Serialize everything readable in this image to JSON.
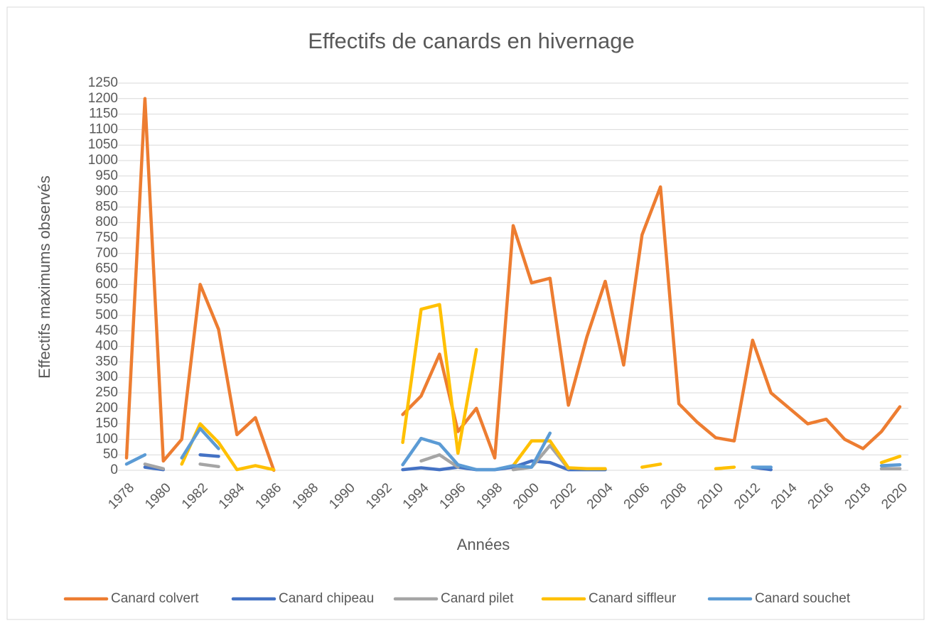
{
  "chart_data": {
    "type": "line",
    "title": "Effectifs de canards en hivernage",
    "x_label": "Années",
    "y_label": "Effectifs maximums observés",
    "categories": [
      "1978",
      null,
      "1980",
      null,
      "1982",
      null,
      "1984",
      null,
      "1986",
      null,
      "1988",
      null,
      "1990",
      null,
      "1992",
      null,
      "1994",
      null,
      "1996",
      null,
      "1998",
      null,
      "2000",
      null,
      "2002",
      null,
      "2004",
      null,
      "2006",
      null,
      "2008",
      null,
      "2010",
      null,
      "2012",
      null,
      "2014",
      null,
      "2016",
      null,
      "2018",
      null,
      "2020"
    ],
    "series": [
      {
        "name": "Canard colvert",
        "color": "#ED7D31",
        "values": [
          40,
          1200,
          30,
          100,
          600,
          455,
          115,
          170,
          0,
          null,
          null,
          null,
          null,
          null,
          null,
          180,
          240,
          375,
          125,
          200,
          40,
          790,
          605,
          620,
          210,
          430,
          610,
          340,
          760,
          915,
          215,
          155,
          105,
          95,
          420,
          250,
          200,
          150,
          165,
          100,
          70,
          125,
          205
        ]
      },
      {
        "name": "Canard chipeau",
        "color": "#4472C4",
        "values": [
          null,
          10,
          2,
          null,
          50,
          45,
          null,
          null,
          null,
          null,
          null,
          null,
          null,
          null,
          null,
          2,
          8,
          2,
          10,
          2,
          2,
          10,
          30,
          25,
          2,
          2,
          2,
          null,
          null,
          null,
          null,
          null,
          null,
          null,
          10,
          2,
          null,
          null,
          null,
          null,
          null,
          5,
          5
        ]
      },
      {
        "name": "Canard pilet",
        "color": "#A5A5A5",
        "values": [
          null,
          20,
          5,
          null,
          20,
          12,
          null,
          null,
          null,
          null,
          null,
          null,
          null,
          null,
          null,
          null,
          30,
          50,
          10,
          null,
          null,
          2,
          10,
          80,
          5,
          null,
          null,
          null,
          null,
          null,
          null,
          null,
          null,
          null,
          null,
          null,
          null,
          null,
          null,
          null,
          null,
          5,
          5
        ]
      },
      {
        "name": "Canard siffleur",
        "color": "#FFC000",
        "values": [
          null,
          null,
          null,
          20,
          150,
          90,
          2,
          15,
          2,
          null,
          null,
          null,
          null,
          null,
          null,
          90,
          520,
          535,
          55,
          390,
          null,
          15,
          95,
          95,
          8,
          5,
          5,
          null,
          10,
          20,
          null,
          null,
          5,
          10,
          null,
          null,
          null,
          null,
          null,
          null,
          null,
          25,
          45
        ]
      },
      {
        "name": "Canard souchet",
        "color": "#5B9BD5",
        "values": [
          20,
          50,
          null,
          40,
          135,
          70,
          null,
          null,
          null,
          null,
          null,
          null,
          null,
          null,
          null,
          18,
          103,
          85,
          18,
          2,
          2,
          15,
          10,
          120,
          null,
          null,
          null,
          null,
          null,
          null,
          null,
          null,
          null,
          null,
          10,
          10,
          null,
          null,
          null,
          null,
          null,
          15,
          18
        ]
      }
    ],
    "ylim": [
      0,
      1250
    ],
    "yticks": [
      0,
      50,
      100,
      150,
      200,
      250,
      300,
      350,
      400,
      450,
      500,
      550,
      600,
      650,
      700,
      750,
      800,
      850,
      900,
      950,
      1000,
      1050,
      1100,
      1150,
      1200,
      1250
    ],
    "grid": true,
    "legend": "bottom"
  }
}
